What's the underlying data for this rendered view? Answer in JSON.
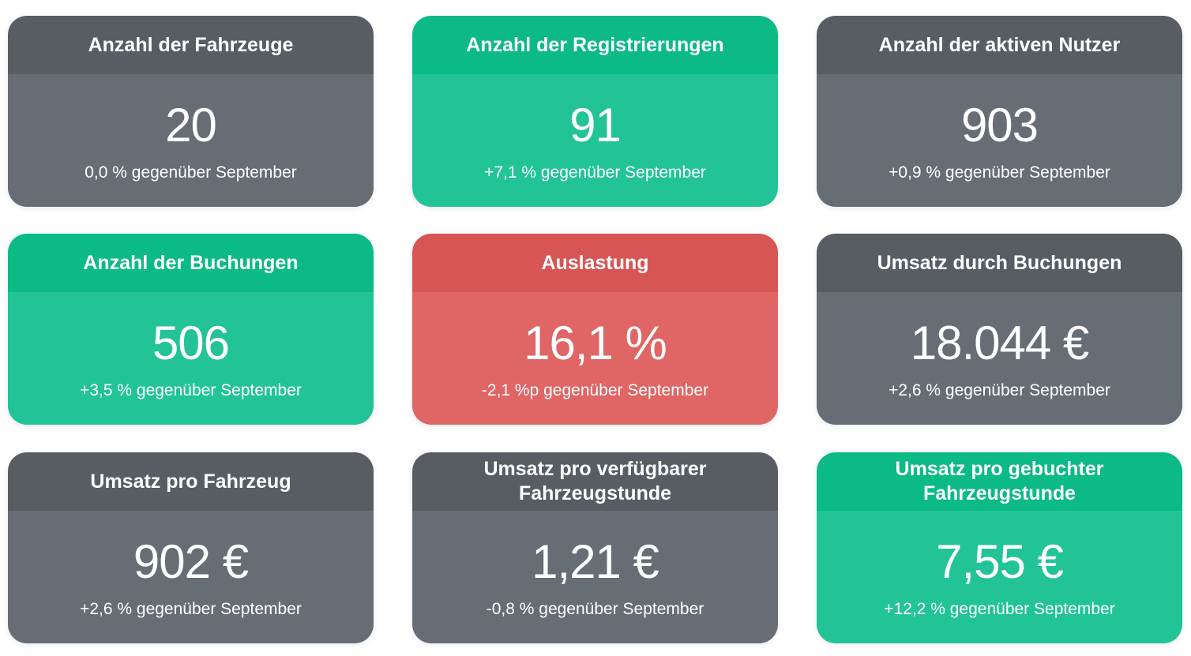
{
  "cards": [
    {
      "title": "Anzahl der Fahrzeuge",
      "value": "20",
      "change": "0,0 % gegenüber September",
      "status": "neutral"
    },
    {
      "title": "Anzahl der Registrierungen",
      "value": "91",
      "change": "+7,1 % gegenüber September",
      "status": "positive"
    },
    {
      "title": "Anzahl der aktiven Nutzer",
      "value": "903",
      "change": "+0,9 % gegenüber September",
      "status": "neutral"
    },
    {
      "title": "Anzahl der Buchungen",
      "value": "506",
      "change": "+3,5 % gegenüber September",
      "status": "positive"
    },
    {
      "title": "Auslastung",
      "value": "16,1 %",
      "change": "-2,1 %p gegenüber September",
      "status": "negative"
    },
    {
      "title": "Umsatz durch Buchungen",
      "value": "18.044 €",
      "change": "+2,6 % gegenüber September",
      "status": "neutral"
    },
    {
      "title": "Umsatz pro Fahrzeug",
      "value": "902 €",
      "change": "+2,6 % gegenüber September",
      "status": "neutral"
    },
    {
      "title": "Umsatz pro verfügbarer Fahrzeugstunde",
      "value": "1,21 €",
      "change": "-0,8 % gegenüber September",
      "status": "neutral"
    },
    {
      "title": "Umsatz pro gebuchter Fahrzeugstunde",
      "value": "7,55 €",
      "change": "+12,2 % gegenüber September",
      "status": "positive"
    }
  ],
  "colors": {
    "neutral_header": "#575d63",
    "neutral_body": "#676d74",
    "positive_header": "#0bba85",
    "positive_body": "#22c497",
    "negative_header": "#d75555",
    "negative_body": "#e06565"
  }
}
